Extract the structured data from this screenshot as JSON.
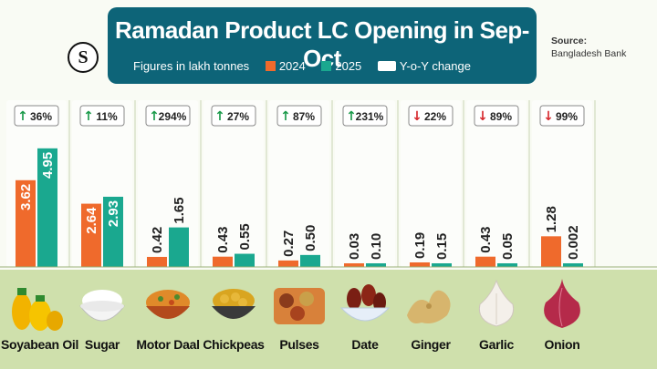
{
  "header": {
    "title": "Ramadan Product LC Opening in Sep-Oct",
    "subtitle": "Figures in lakh tonnes",
    "legend_2024": "2024",
    "legend_2025": "2025",
    "legend_yoy": "Y-o-Y change",
    "source_label": "Source:",
    "source_text": "Bangladesh Bank",
    "logo_letter": "S"
  },
  "colors": {
    "y2024": "#ef6a2c",
    "y2025": "#1aa88f",
    "header_bg": "#0d6478",
    "up": "#1a9a4a",
    "down": "#d6262b"
  },
  "chart_data": {
    "type": "bar",
    "title": "Ramadan Product LC Opening in Sep-Oct",
    "ylabel": "Figures in lakh tonnes",
    "categories": [
      "Soyabean Oil",
      "Sugar",
      "Motor Daal",
      "Chickpeas",
      "Pulses",
      "Date",
      "Ginger",
      "Garlic",
      "Onion"
    ],
    "series": [
      {
        "name": "2024",
        "values": [
          3.62,
          2.64,
          0.42,
          0.43,
          0.27,
          0.03,
          0.19,
          0.43,
          1.28
        ]
      },
      {
        "name": "2025",
        "values": [
          4.95,
          2.93,
          1.65,
          0.55,
          0.5,
          0.1,
          0.15,
          0.05,
          0.002
        ]
      }
    ],
    "value_labels": {
      "2024": [
        "3.62",
        "2.64",
        "0.42",
        "0.43",
        "0.27",
        "0.03",
        "0.19",
        "0.43",
        "1.28"
      ],
      "2025": [
        "4.95",
        "2.93",
        "1.65",
        "0.55",
        "0.50",
        "0.10",
        "0.15",
        "0.05",
        "0.002"
      ]
    },
    "yoy_change": [
      "36%",
      "11%",
      "294%",
      "27%",
      "87%",
      "231%",
      "22%",
      "89%",
      "99%"
    ],
    "yoy_direction": [
      "up",
      "up",
      "up",
      "up",
      "up",
      "up",
      "down",
      "down",
      "down"
    ],
    "ylim": [
      0,
      5
    ],
    "legend": "top"
  },
  "products": {
    "icons": [
      "oil-bottles-icon",
      "sugar-bowl-icon",
      "daal-bowl-icon",
      "chickpea-bowl-icon",
      "pulses-basket-icon",
      "dates-bowl-icon",
      "ginger-icon",
      "garlic-icon",
      "onion-icon"
    ]
  }
}
